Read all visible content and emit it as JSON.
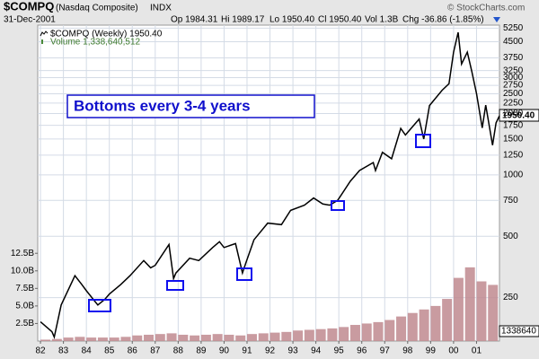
{
  "chart_data": {
    "type": "line",
    "title": "$COMPQ",
    "subtitle": "(Nasdaq Composite)",
    "exchange": "INDX",
    "date": "31-Dec-2001",
    "stats": [
      "Op 1984.31",
      "Hi 1989.17",
      "Lo 1950.40",
      "Cl 1950.40",
      "Vol 1.3B",
      "Chg -36.86 (-1.85%)"
    ],
    "credit": "© StockCharts.com",
    "annotation": "Bottoms every 3-4 years",
    "last_labels": [
      "1950.40",
      "1338640"
    ],
    "log_scale": true,
    "grid": true,
    "xlim": [
      1981.88,
      2002.0
    ],
    "xticks": [
      {
        "value": 1982,
        "label": "82"
      },
      {
        "value": 1983,
        "label": "83"
      },
      {
        "value": 1984,
        "label": "84"
      },
      {
        "value": 1985,
        "label": "85"
      },
      {
        "value": 1986,
        "label": "86"
      },
      {
        "value": 1987,
        "label": "87"
      },
      {
        "value": 1988,
        "label": "88"
      },
      {
        "value": 1989,
        "label": "89"
      },
      {
        "value": 1990,
        "label": "90"
      },
      {
        "value": 1991,
        "label": "91"
      },
      {
        "value": 1992,
        "label": "92"
      },
      {
        "value": 1993,
        "label": "93"
      },
      {
        "value": 1994,
        "label": "94"
      },
      {
        "value": 1995,
        "label": "95"
      },
      {
        "value": 1996,
        "label": "96"
      },
      {
        "value": 1997,
        "label": "97"
      },
      {
        "value": 1998,
        "label": "98"
      },
      {
        "value": 1999,
        "label": "99"
      },
      {
        "value": 2000,
        "label": "00"
      },
      {
        "value": 2001,
        "label": "01"
      }
    ],
    "ylim": [
      153,
      5430
    ],
    "yticks": [
      250,
      500,
      750,
      1000,
      1250,
      1500,
      1750,
      2000,
      2250,
      2500,
      2750,
      3000,
      3250,
      3750,
      4500,
      5250
    ],
    "y2lim": [
      0,
      45000000000
    ],
    "y2ticks": [
      {
        "value": 2500000000,
        "label": "2.5B"
      },
      {
        "value": 5000000000,
        "label": "5.0B"
      },
      {
        "value": 7500000000,
        "label": "7.5B"
      },
      {
        "value": 10000000000,
        "label": "10.0B"
      },
      {
        "value": 12500000000,
        "label": "12.5B"
      }
    ],
    "series": [
      {
        "name": "$COMPQ (Weekly) 1950.40",
        "color": "#000000",
        "x": [
          1982.0,
          1982.5,
          1982.6,
          1982.9,
          1983.5,
          1983.8,
          1984.0,
          1984.5,
          1984.8,
          1985.0,
          1985.5,
          1985.9,
          1986.5,
          1986.8,
          1987.0,
          1987.6,
          1987.8,
          1987.9,
          1988.5,
          1988.9,
          1989.5,
          1989.8,
          1990.0,
          1990.5,
          1990.8,
          1990.95,
          1991.3,
          1991.9,
          1992.5,
          1992.9,
          1993.5,
          1993.9,
          1994.3,
          1994.6,
          1994.95,
          1995.5,
          1995.9,
          1996.5,
          1996.6,
          1996.9,
          1997.3,
          1997.7,
          1997.9,
          1998.5,
          1998.7,
          1998.95,
          1999.5,
          1999.8,
          2000.0,
          2000.2,
          2000.35,
          2000.6,
          2000.8,
          2001.0,
          2001.25,
          2001.4,
          2001.7,
          2001.85,
          2002.0
        ],
        "values": [
          190,
          170,
          160,
          230,
          320,
          290,
          270,
          230,
          245,
          260,
          290,
          320,
          380,
          350,
          360,
          455,
          310,
          330,
          390,
          380,
          440,
          470,
          440,
          460,
          330,
          370,
          480,
          580,
          570,
          670,
          710,
          770,
          720,
          710,
          750,
          930,
          1050,
          1150,
          1050,
          1290,
          1200,
          1690,
          1570,
          1880,
          1500,
          2190,
          2600,
          2800,
          4000,
          5000,
          3500,
          4000,
          3200,
          2500,
          1700,
          2200,
          1400,
          1800,
          1950.4
        ]
      },
      {
        "name": "Volume 1,338,640,512",
        "color": "#c08a8f",
        "axis": "y2",
        "x": [
          1982.0,
          1982.5,
          1983.0,
          1983.5,
          1984.0,
          1984.5,
          1985.0,
          1985.5,
          1986.0,
          1986.5,
          1987.0,
          1987.5,
          1988.0,
          1988.5,
          1989.0,
          1989.5,
          1990.0,
          1990.5,
          1991.0,
          1991.5,
          1992.0,
          1992.5,
          1993.0,
          1993.5,
          1994.0,
          1994.5,
          1995.0,
          1995.5,
          1996.0,
          1996.5,
          1997.0,
          1997.5,
          1998.0,
          1998.5,
          1999.0,
          1999.5,
          2000.0,
          2000.5,
          2001.0,
          2001.5
        ],
        "values": [
          200000000,
          300000000,
          500000000,
          600000000,
          500000000,
          500000000,
          500000000,
          600000000,
          800000000,
          900000000,
          1000000000,
          1100000000,
          900000000,
          800000000,
          900000000,
          1000000000,
          900000000,
          800000000,
          1000000000,
          1100000000,
          1200000000,
          1300000000,
          1500000000,
          1600000000,
          1700000000,
          1800000000,
          2000000000,
          2300000000,
          2500000000,
          2700000000,
          3000000000,
          3500000000,
          4000000000,
          4500000000,
          5000000000,
          6000000000,
          9000000000,
          10500000000,
          8500000000,
          8000000000
        ]
      }
    ]
  }
}
